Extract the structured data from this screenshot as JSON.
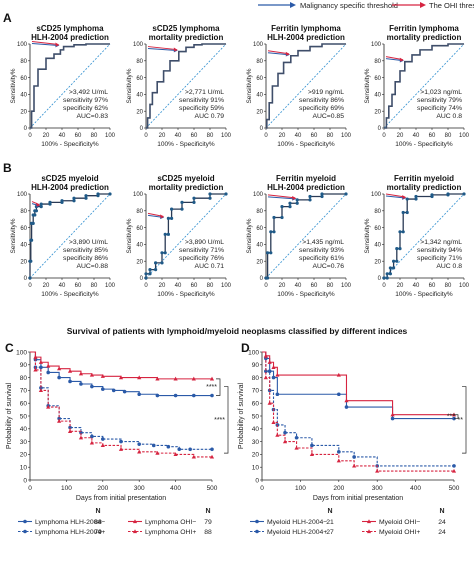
{
  "legend_top": {
    "malignancy": {
      "label": "Malignancy specific threshold",
      "color": "#2b5aa8"
    },
    "ohi": {
      "label": "The OHI threshold",
      "color": "#d62440"
    }
  },
  "colors": {
    "curve": "#3f4e6a",
    "diag": "#2f8fd0",
    "blue": "#2b5aa8",
    "red": "#d62440",
    "blueDots": "#1f5a88"
  },
  "panel_letters": {
    "a": "A",
    "b": "B",
    "c": "C",
    "d": "D"
  },
  "roc_axes": {
    "xlabel": "100% - Specificity%",
    "ylabel": "Sensitivity%",
    "ticks": [
      "0",
      "20",
      "40",
      "60",
      "80",
      "100"
    ]
  },
  "survival_title": "Survival of patients with lymphoid/myeloid neoplasms classified by different indices",
  "survival_axes": {
    "ylabel": "Probability of survival",
    "xlabel": "Days from initial presentation"
  },
  "chart_data": [
    {
      "type": "line",
      "panel": "A",
      "title": [
        "sCD25 lymphoma",
        "HLH-2004 prediction"
      ],
      "xlabel": "100% - Specificity%",
      "ylabel": "Sensitivity%",
      "ylim": [
        0,
        100
      ],
      "xlim": [
        0,
        100
      ],
      "annotation": [
        ">3,492 U/mL",
        "sensitivity 97%",
        "specificity 62%",
        "AUC=0.83"
      ],
      "series": [
        {
          "values_x": [
            0,
            2,
            2,
            5,
            5,
            10,
            10,
            20,
            20,
            30,
            30,
            38,
            38,
            42,
            42,
            55,
            55,
            70,
            70,
            100
          ],
          "values_y": [
            0,
            0,
            20,
            20,
            50,
            50,
            70,
            70,
            83,
            83,
            88,
            88,
            93,
            93,
            97,
            97,
            99,
            99,
            100,
            100
          ]
        }
      ]
    },
    {
      "type": "line",
      "panel": "A",
      "title": [
        "sCD25 lymphoma",
        "mortality prediction"
      ],
      "xlabel": "100% - Specificity%",
      "ylabel": "Sensitivity%",
      "ylim": [
        0,
        100
      ],
      "xlim": [
        0,
        100
      ],
      "annotation": [
        ">2,771 U/mL",
        "sensitivity 91%",
        "specificity 59%",
        "AUC 0.79"
      ],
      "series": [
        {
          "values_x": [
            0,
            2,
            2,
            5,
            5,
            8,
            8,
            14,
            14,
            22,
            22,
            30,
            30,
            41,
            41,
            50,
            50,
            60,
            60,
            70,
            70,
            100
          ],
          "values_y": [
            0,
            0,
            12,
            12,
            28,
            28,
            42,
            42,
            55,
            55,
            68,
            68,
            80,
            80,
            91,
            91,
            96,
            96,
            99,
            99,
            100,
            100
          ]
        }
      ]
    },
    {
      "type": "line",
      "panel": "A",
      "title": [
        "Ferritin lymphoma",
        "HLH-2004 prediction"
      ],
      "xlabel": "100% - Specificity%",
      "ylabel": "Sensitivity%",
      "ylim": [
        0,
        100
      ],
      "xlim": [
        0,
        100
      ],
      "annotation": [
        ">919 ng/mL",
        "sensitivity 86%",
        "specificity 69%",
        "AUC=0.85"
      ],
      "series": [
        {
          "values_x": [
            0,
            1,
            1,
            4,
            4,
            8,
            8,
            15,
            15,
            22,
            22,
            31,
            31,
            40,
            40,
            55,
            55,
            70,
            70,
            100
          ],
          "values_y": [
            0,
            0,
            10,
            10,
            30,
            30,
            50,
            50,
            65,
            65,
            78,
            78,
            86,
            86,
            92,
            92,
            97,
            97,
            100,
            100
          ]
        }
      ]
    },
    {
      "type": "line",
      "panel": "A",
      "title": [
        "Ferritin lymphoma",
        "mortality prediction"
      ],
      "xlabel": "100% - Specificity%",
      "ylabel": "Sensitivity%",
      "ylim": [
        0,
        100
      ],
      "xlim": [
        0,
        100
      ],
      "annotation": [
        ">1,023 ng/mL",
        "sensitivity 79%",
        "specificity 74%",
        "AUC 0.8"
      ],
      "series": [
        {
          "values_x": [
            0,
            3,
            3,
            6,
            6,
            10,
            10,
            14,
            14,
            20,
            20,
            26,
            26,
            35,
            35,
            45,
            45,
            60,
            60,
            80,
            80,
            100
          ],
          "values_y": [
            0,
            0,
            12,
            12,
            26,
            26,
            40,
            40,
            55,
            55,
            68,
            68,
            79,
            79,
            87,
            87,
            93,
            93,
            98,
            98,
            100,
            100
          ]
        }
      ]
    },
    {
      "type": "line",
      "panel": "B",
      "title": [
        "sCD25 myeloid",
        "HLH-2004 prediction"
      ],
      "xlabel": "100% - Specificity%",
      "ylabel": "Sensitivity%",
      "ylim": [
        0,
        100
      ],
      "xlim": [
        0,
        100
      ],
      "annotation": [
        ">3,890 U/mL",
        "sensitivity 85%",
        "specificity 86%",
        "AUC=0.88"
      ],
      "series": [
        {
          "values_x": [
            0,
            0,
            1,
            1,
            2,
            2,
            4,
            4,
            6,
            6,
            8,
            8,
            14,
            14,
            25,
            25,
            40,
            40,
            55,
            55,
            70,
            70,
            85,
            85,
            100
          ],
          "values_y": [
            0,
            20,
            20,
            45,
            45,
            65,
            65,
            75,
            75,
            80,
            80,
            85,
            85,
            88,
            88,
            90,
            90,
            92,
            92,
            95,
            95,
            98,
            98,
            100,
            100
          ]
        }
      ]
    },
    {
      "type": "line",
      "panel": "B",
      "title": [
        "sCD25 myeloid",
        "mortality prediction"
      ],
      "xlabel": "100% - Specificity%",
      "ylabel": "Sensitivity%",
      "ylim": [
        0,
        100
      ],
      "xlim": [
        0,
        100
      ],
      "annotation": [
        ">3,890 U/mL",
        "sensitivity 71%",
        "specificity 76%",
        "AUC 0.71"
      ],
      "series": [
        {
          "values_x": [
            0,
            0,
            5,
            5,
            12,
            12,
            20,
            20,
            24,
            24,
            28,
            28,
            32,
            32,
            45,
            45,
            60,
            60,
            80,
            80,
            100
          ],
          "values_y": [
            0,
            5,
            5,
            10,
            10,
            18,
            18,
            30,
            30,
            52,
            52,
            71,
            71,
            82,
            82,
            90,
            90,
            95,
            95,
            100,
            100
          ]
        }
      ]
    },
    {
      "type": "line",
      "panel": "B",
      "title": [
        "Ferritin myeloid",
        "HLH-2004 prediction"
      ],
      "xlabel": "100% - Specificity%",
      "ylabel": "Sensitivity%",
      "ylim": [
        0,
        100
      ],
      "xlim": [
        0,
        100
      ],
      "annotation": [
        ">1,435 ng/mL",
        "sensitivity 93%",
        "specificity 61%",
        "AUC=0.76"
      ],
      "series": [
        {
          "values_x": [
            0,
            2,
            2,
            6,
            6,
            10,
            10,
            20,
            20,
            30,
            30,
            39,
            39,
            55,
            55,
            70,
            70,
            100
          ],
          "values_y": [
            0,
            0,
            30,
            30,
            55,
            55,
            72,
            72,
            85,
            85,
            89,
            89,
            93,
            93,
            97,
            97,
            100,
            100
          ]
        }
      ]
    },
    {
      "type": "line",
      "panel": "B",
      "title": [
        "Ferritin myeloid",
        "mortality prediction"
      ],
      "xlabel": "100% - Specificity%",
      "ylabel": "Sensitivity%",
      "ylim": [
        0,
        100
      ],
      "xlim": [
        0,
        100
      ],
      "annotation": [
        ">1,342 ng/mL",
        "sensitivity 94%",
        "specificity 71%",
        "AUC 0.8"
      ],
      "series": [
        {
          "values_x": [
            0,
            4,
            4,
            8,
            8,
            12,
            12,
            16,
            16,
            20,
            20,
            24,
            24,
            29,
            29,
            40,
            40,
            60,
            60,
            80,
            80,
            100
          ],
          "values_y": [
            0,
            0,
            5,
            5,
            12,
            12,
            20,
            20,
            35,
            35,
            55,
            55,
            78,
            78,
            94,
            94,
            97,
            97,
            99,
            99,
            100,
            100
          ]
        }
      ]
    },
    {
      "type": "line",
      "panel": "C",
      "ylabel": "Probability of survival",
      "xlabel": "Days from initial presentation",
      "xlim": [
        0,
        500
      ],
      "ylim": [
        0,
        100
      ],
      "x_ticks": [
        0,
        100,
        200,
        300,
        400,
        500
      ],
      "y_ticks": [
        0,
        10,
        20,
        30,
        40,
        50,
        60,
        70,
        80,
        90,
        100
      ],
      "significance": [
        "****",
        "****"
      ],
      "legend_header": "N",
      "series": [
        {
          "name": "Lymphoma HLH-2004−",
          "n": "88",
          "color": "#2b5aa8",
          "dash": false,
          "marker": "circle",
          "x": [
            0,
            15,
            30,
            50,
            80,
            110,
            140,
            170,
            200,
            230,
            260,
            300,
            350,
            400,
            450,
            500
          ],
          "y": [
            100,
            94,
            88,
            84,
            80,
            77,
            75,
            73,
            71,
            70,
            69,
            67,
            66,
            66,
            66,
            66
          ]
        },
        {
          "name": "Lymphoma HLH-2004+",
          "n": "79",
          "color": "#2b5aa8",
          "dash": true,
          "marker": "circle",
          "x": [
            0,
            15,
            30,
            50,
            80,
            110,
            140,
            170,
            200,
            250,
            300,
            340,
            380,
            410,
            440,
            500
          ],
          "y": [
            100,
            88,
            72,
            58,
            48,
            41,
            37,
            34,
            32,
            30,
            28,
            27,
            26,
            24,
            24,
            24
          ]
        },
        {
          "name": "Lymphoma OHI−",
          "n": "79",
          "color": "#d62440",
          "dash": false,
          "marker": "triangle",
          "x": [
            0,
            15,
            30,
            50,
            80,
            110,
            140,
            170,
            200,
            250,
            300,
            350,
            400,
            450,
            500
          ],
          "y": [
            100,
            96,
            92,
            89,
            87,
            85,
            83,
            82,
            81,
            80,
            80,
            79,
            79,
            79,
            79
          ]
        },
        {
          "name": "Lymphoma OHI+",
          "n": "88",
          "color": "#d62440",
          "dash": true,
          "marker": "triangle",
          "x": [
            0,
            15,
            30,
            50,
            80,
            110,
            140,
            170,
            200,
            250,
            300,
            350,
            400,
            450,
            500
          ],
          "y": [
            100,
            86,
            70,
            57,
            46,
            38,
            33,
            29,
            27,
            24,
            22,
            21,
            20,
            18,
            18
          ]
        }
      ]
    },
    {
      "type": "line",
      "panel": "D",
      "ylabel": "Probability of survival",
      "xlabel": "Days from initial presentation",
      "xlim": [
        0,
        500
      ],
      "ylim": [
        0,
        100
      ],
      "x_ticks": [
        0,
        100,
        200,
        300,
        400,
        500
      ],
      "y_ticks": [
        0,
        10,
        20,
        30,
        40,
        50,
        60,
        70,
        80,
        90,
        100
      ],
      "significance": [
        "***",
        "**"
      ],
      "legend_header": "N",
      "series": [
        {
          "name": "Myeloid HLH-2004−",
          "n": "21",
          "color": "#2b5aa8",
          "dash": false,
          "marker": "circle",
          "x": [
            0,
            10,
            20,
            30,
            40,
            200,
            220,
            340,
            500
          ],
          "y": [
            100,
            95,
            85,
            80,
            67,
            67,
            57,
            48,
            48
          ]
        },
        {
          "name": "Myeloid HLH-2004+",
          "n": "27",
          "color": "#2b5aa8",
          "dash": true,
          "marker": "circle",
          "x": [
            0,
            10,
            20,
            30,
            40,
            60,
            90,
            130,
            200,
            240,
            300,
            500
          ],
          "y": [
            100,
            85,
            70,
            55,
            43,
            37,
            33,
            27,
            22,
            18,
            11,
            11
          ]
        },
        {
          "name": "Myeloid OHI−",
          "n": "24",
          "color": "#d62440",
          "dash": false,
          "marker": "triangle",
          "x": [
            0,
            10,
            20,
            30,
            40,
            200,
            220,
            340,
            500
          ],
          "y": [
            100,
            97,
            92,
            88,
            82,
            82,
            62,
            51,
            51
          ]
        },
        {
          "name": "Myeloid OHI+",
          "n": "24",
          "color": "#d62440",
          "dash": true,
          "marker": "triangle",
          "x": [
            0,
            10,
            20,
            30,
            40,
            60,
            90,
            130,
            200,
            240,
            300,
            500
          ],
          "y": [
            100,
            80,
            60,
            45,
            35,
            30,
            25,
            20,
            15,
            11,
            7,
            7
          ]
        }
      ]
    }
  ]
}
